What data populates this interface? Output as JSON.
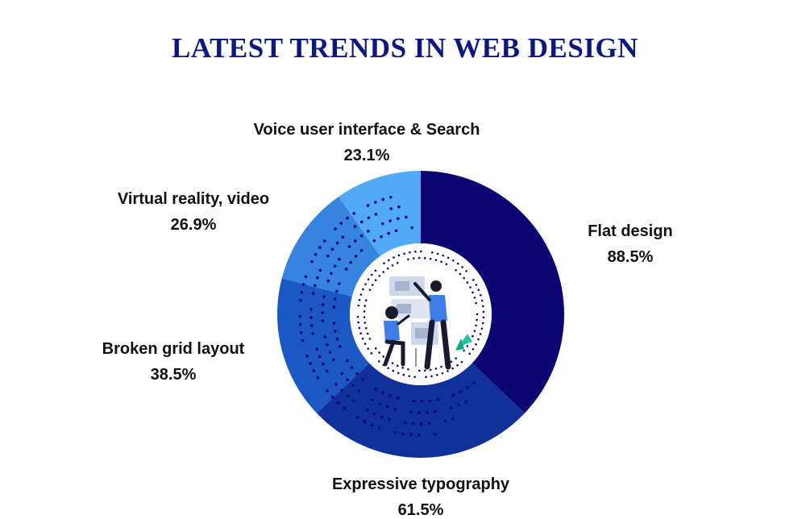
{
  "title": "LATEST TRENDS IN WEB DESIGN",
  "chart_data": {
    "type": "pie",
    "title": "LATEST TRENDS IN WEB DESIGN",
    "categories": [
      "Flat design",
      "Expressive typography",
      "Broken grid layout",
      "Virtual reality, video",
      "Voice user interface & Search"
    ],
    "values": [
      88.5,
      61.5,
      38.5,
      26.9,
      23.1
    ],
    "value_labels": [
      "88.5%",
      "61.5%",
      "38.5%",
      "26.9%",
      "23.1%"
    ],
    "colors": [
      "#0c0673",
      "#0f3199",
      "#1c58c4",
      "#3684e0",
      "#52aaf7"
    ],
    "donut": true,
    "legend": "labels beside slices"
  }
}
